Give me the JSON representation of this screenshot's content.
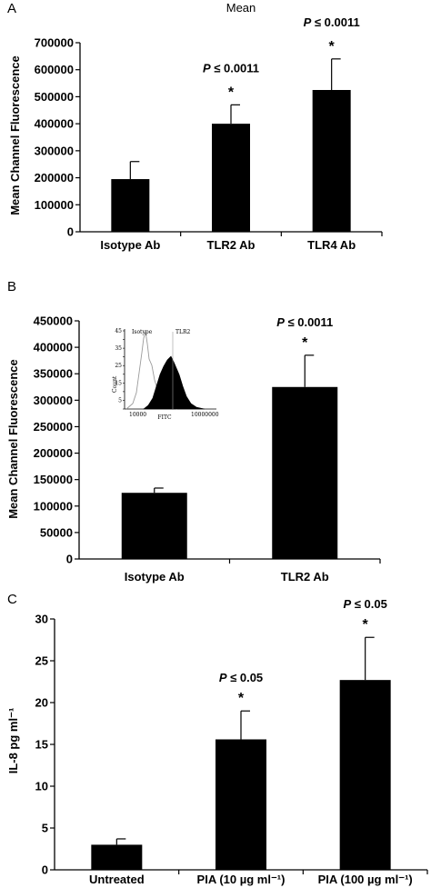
{
  "chart_data": [
    {
      "panel": "A",
      "type": "bar",
      "title": "Mean",
      "ylabel": "Mean Channel Fluorescence",
      "categories": [
        "Isotype Ab",
        "TLR2 Ab",
        "TLR4 Ab"
      ],
      "values": [
        195000,
        400000,
        525000
      ],
      "errors": [
        65000,
        70000,
        115000
      ],
      "ylim": [
        0,
        700000
      ],
      "yticks": [
        "0",
        "100000",
        "200000",
        "300000",
        "400000",
        "500000",
        "600000",
        "700000"
      ],
      "annotations": [
        {
          "category": "TLR2 Ab",
          "p_text": "P ≤ 0.0011",
          "star": "*"
        },
        {
          "category": "TLR4 Ab",
          "p_text": "P ≤ 0.0011",
          "star": "*"
        }
      ]
    },
    {
      "panel": "B",
      "type": "bar",
      "ylabel": "Mean Channel Fluorescence",
      "categories": [
        "Isotype Ab",
        "TLR2 Ab"
      ],
      "values": [
        125000,
        325000
      ],
      "errors": [
        9000,
        60000
      ],
      "ylim": [
        0,
        450000
      ],
      "yticks": [
        "0",
        "50000",
        "100000",
        "150000",
        "200000",
        "250000",
        "300000",
        "350000",
        "400000",
        "450000"
      ],
      "annotations": [
        {
          "category": "TLR2 Ab",
          "p_text": "P ≤ 0.0011",
          "star": "*"
        }
      ],
      "inset": {
        "labels": {
          "isotype": "Isotype",
          "tlr2": "TLR2"
        },
        "xlabel": "FITC",
        "ylabel": "Count",
        "x_ticks": [
          "10000",
          "10000000"
        ],
        "y_ticks": [
          "0",
          "5",
          "10",
          "15",
          "20",
          "25",
          "30",
          "35",
          "40",
          "45"
        ]
      }
    },
    {
      "panel": "C",
      "type": "bar",
      "ylabel": "IL-8 pg ml⁻¹",
      "categories": [
        "Untreated",
        "PIA (10 µg ml⁻¹)",
        "PIA (100 µg ml⁻¹)"
      ],
      "values": [
        3.0,
        15.6,
        22.7
      ],
      "errors": [
        0.7,
        3.4,
        5.1
      ],
      "ylim": [
        0,
        30
      ],
      "yticks": [
        "0",
        "5",
        "10",
        "15",
        "20",
        "25",
        "30"
      ],
      "annotations": [
        {
          "category": "PIA (10 µg ml⁻¹)",
          "p_text": "P ≤ 0.05",
          "star": "*"
        },
        {
          "category": "PIA (100 µg ml⁻¹)",
          "p_text": "P ≤ 0.05",
          "star": "*"
        }
      ]
    }
  ],
  "colors": {
    "bar": "#000000",
    "axis": "#000000",
    "isotype_line": "#9a9a9a",
    "tlr2_fill": "#000000"
  }
}
